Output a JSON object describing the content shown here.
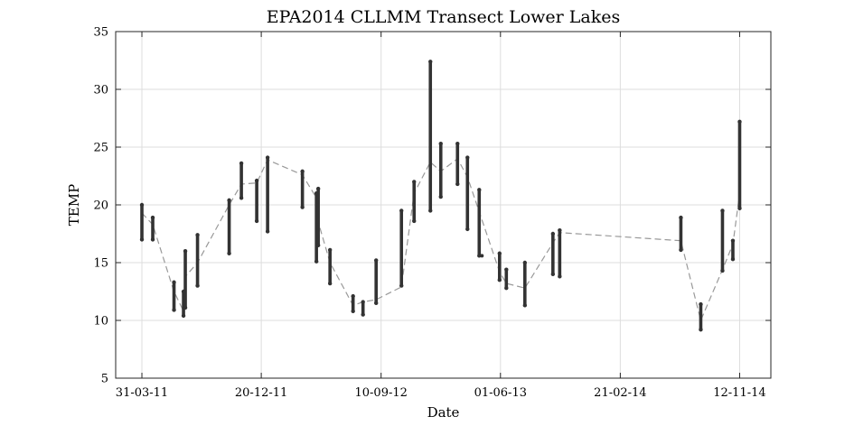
{
  "chart_data": {
    "type": "scatter",
    "title": "EPA2014 CLLMM Transect Lower Lakes",
    "xlabel": "Date",
    "ylabel": "TEMP",
    "ylim": [
      5,
      35
    ],
    "yticks": [
      5,
      10,
      15,
      20,
      25,
      30,
      35
    ],
    "xlim": [
      "2011-02-01",
      "2015-01-20"
    ],
    "xticks": [
      {
        "date": "2011-03-31",
        "label": "31-03-11"
      },
      {
        "date": "2011-12-20",
        "label": "20-12-11"
      },
      {
        "date": "2012-09-10",
        "label": "10-09-12"
      },
      {
        "date": "2013-06-01",
        "label": "01-06-13"
      },
      {
        "date": "2014-02-21",
        "label": "21-02-14"
      },
      {
        "date": "2014-11-12",
        "label": "12-11-14"
      }
    ],
    "grid": true,
    "colors": {
      "points": "#333333",
      "mean_line": "#999999",
      "grid": "#dddddd"
    },
    "samples": [
      {
        "date": "2011-03-31",
        "min": 17.0,
        "max": 20.0,
        "mean": 19.3
      },
      {
        "date": "2011-04-24",
        "min": 17.0,
        "max": 18.9,
        "mean": 18.3
      },
      {
        "date": "2011-06-10",
        "min": 10.9,
        "max": 13.3,
        "mean": 12.5
      },
      {
        "date": "2011-07-01",
        "min": 10.4,
        "max": 12.5,
        "mean": 10.8
      },
      {
        "date": "2011-07-05",
        "min": 11.1,
        "max": 16.0,
        "mean": 13.8
      },
      {
        "date": "2011-08-01",
        "min": 13.0,
        "max": 17.4,
        "mean": 15.0
      },
      {
        "date": "2011-10-10",
        "min": 15.8,
        "max": 20.4,
        "mean": 20.0
      },
      {
        "date": "2011-11-06",
        "min": 20.6,
        "max": 23.6,
        "mean": 21.8
      },
      {
        "date": "2011-12-10",
        "min": 18.6,
        "max": 22.1,
        "mean": 21.9
      },
      {
        "date": "2012-01-03",
        "min": 17.7,
        "max": 24.1,
        "mean": 23.9
      },
      {
        "date": "2012-03-20",
        "min": 19.8,
        "max": 22.9,
        "mean": 22.6
      },
      {
        "date": "2012-04-20",
        "min": 15.1,
        "max": 21.0,
        "mean": 20.6
      },
      {
        "date": "2012-04-24",
        "min": 16.5,
        "max": 21.4,
        "mean": 18.5
      },
      {
        "date": "2012-05-20",
        "min": 13.2,
        "max": 16.1,
        "mean": 15.0
      },
      {
        "date": "2012-07-10",
        "min": 10.8,
        "max": 12.1,
        "mean": 11.3
      },
      {
        "date": "2012-08-01",
        "min": 10.5,
        "max": 11.6,
        "mean": 11.6
      },
      {
        "date": "2012-08-30",
        "min": 11.5,
        "max": 15.2,
        "mean": 11.8
      },
      {
        "date": "2012-10-25",
        "min": 13.0,
        "max": 19.5,
        "mean": 12.9
      },
      {
        "date": "2012-11-22",
        "min": 18.6,
        "max": 22.0,
        "mean": 21.0
      },
      {
        "date": "2012-12-28",
        "min": 19.5,
        "max": 32.4,
        "mean": 23.7
      },
      {
        "date": "2013-01-20",
        "min": 20.7,
        "max": 25.3,
        "mean": 22.9
      },
      {
        "date": "2013-02-26",
        "min": 21.8,
        "max": 25.3,
        "mean": 24.0
      },
      {
        "date": "2013-03-20",
        "min": 17.9,
        "max": 24.1,
        "mean": 22.4
      },
      {
        "date": "2013-04-15",
        "min": 15.6,
        "max": 21.3,
        "mean": 19.4
      },
      {
        "date": "2013-05-30",
        "min": 13.5,
        "max": 15.8,
        "mean": 14.2
      },
      {
        "date": "2013-06-14",
        "min": 12.8,
        "max": 14.4,
        "mean": 13.2
      },
      {
        "date": "2013-07-25",
        "min": 11.3,
        "max": 15.0,
        "mean": 12.8
      },
      {
        "date": "2013-09-25",
        "min": 14.0,
        "max": 17.5,
        "mean": 16.7
      },
      {
        "date": "2013-10-10",
        "min": 13.8,
        "max": 17.8,
        "mean": 17.6
      },
      {
        "date": "2014-07-05",
        "min": 16.1,
        "max": 18.9,
        "mean": 16.9
      },
      {
        "date": "2014-08-18",
        "min": 9.2,
        "max": 11.4,
        "mean": 10.0
      },
      {
        "date": "2014-10-05",
        "min": 14.3,
        "max": 19.5,
        "mean": 14.4
      },
      {
        "date": "2014-10-28",
        "min": 15.3,
        "max": 16.9,
        "mean": 16.6
      },
      {
        "date": "2014-11-12",
        "min": 19.7,
        "max": 27.2,
        "mean": 21.0
      }
    ],
    "outliers": [
      {
        "date": "2013-04-15",
        "value": 15.6
      }
    ]
  }
}
